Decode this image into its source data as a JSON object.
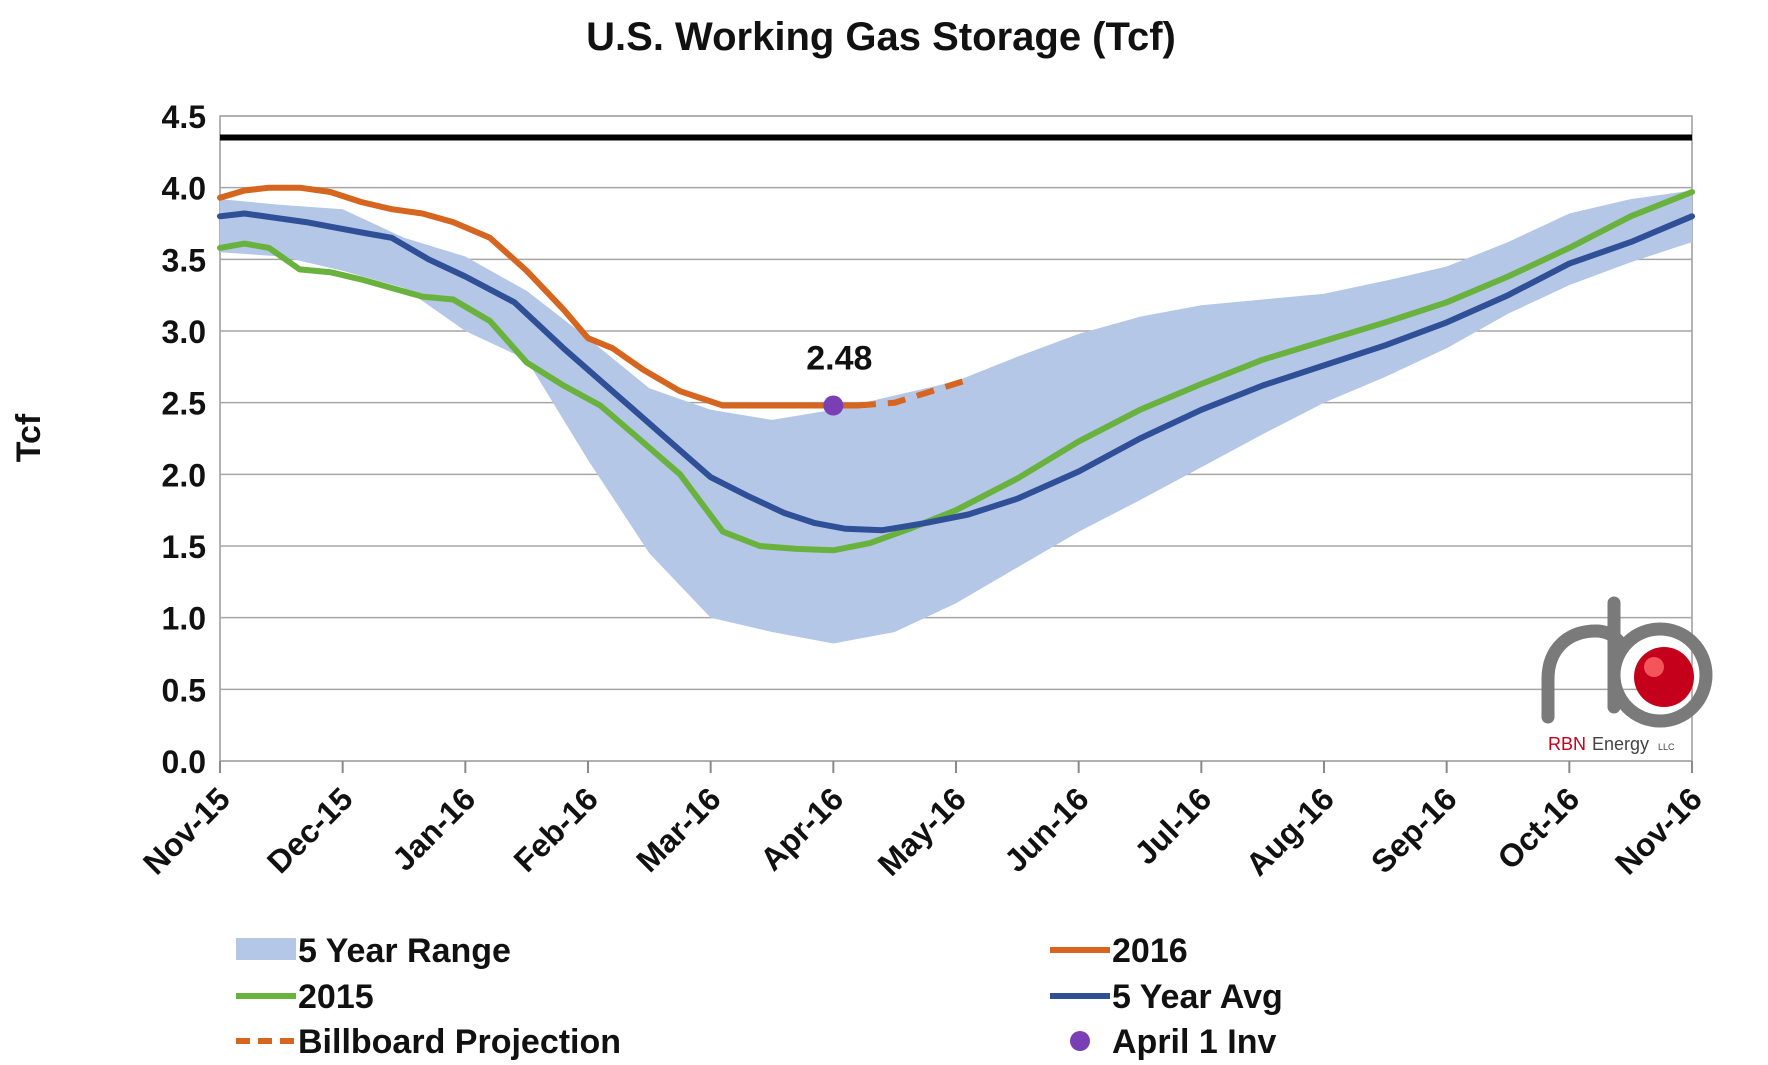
{
  "chart_data": {
    "type": "line",
    "title": "U.S. Working Gas Storage (Tcf)",
    "ylabel": "Tcf",
    "xlabel": "",
    "ylim": [
      0,
      4.5
    ],
    "yticks": [
      "0.0",
      "0.5",
      "1.0",
      "1.5",
      "2.0",
      "2.5",
      "3.0",
      "3.5",
      "4.0",
      "4.5"
    ],
    "xticks": [
      "Nov-15",
      "Dec-15",
      "Jan-16",
      "Feb-16",
      "Mar-16",
      "Apr-16",
      "May-16",
      "Jun-16",
      "Jul-16",
      "Aug-16",
      "Sep-16",
      "Oct-16",
      "Nov-16"
    ],
    "x_unit": "months since Nov-15",
    "capacity_line": {
      "value": 4.35,
      "color": "#000000"
    },
    "series": [
      {
        "name": "5 Year Range",
        "kind": "range",
        "color": "#b4c7e7",
        "x": [
          0,
          0.5,
          1,
          1.5,
          2,
          2.5,
          3,
          3.5,
          4,
          4.5,
          5,
          5.5,
          6,
          6.5,
          7,
          7.5,
          8,
          8.5,
          9,
          9.5,
          10,
          10.5,
          11,
          11.5,
          12
        ],
        "high": [
          3.92,
          3.88,
          3.85,
          3.65,
          3.52,
          3.28,
          2.95,
          2.6,
          2.45,
          2.38,
          2.45,
          2.55,
          2.65,
          2.82,
          2.98,
          3.1,
          3.18,
          3.22,
          3.26,
          3.35,
          3.45,
          3.62,
          3.82,
          3.92,
          3.98
        ],
        "low": [
          3.55,
          3.52,
          3.42,
          3.3,
          3.0,
          2.8,
          2.1,
          1.45,
          1.0,
          0.9,
          0.82,
          0.9,
          1.1,
          1.35,
          1.6,
          1.82,
          2.05,
          2.28,
          2.5,
          2.68,
          2.88,
          3.12,
          3.32,
          3.48,
          3.62
        ]
      },
      {
        "name": "2016",
        "color": "#d6651f",
        "x": [
          0,
          0.2,
          0.4,
          0.65,
          0.9,
          1.15,
          1.4,
          1.65,
          1.9,
          2.2,
          2.5,
          2.8,
          3.0,
          3.2,
          3.45,
          3.75,
          4.1,
          4.4,
          4.7,
          5.0,
          5.2
        ],
        "values": [
          3.93,
          3.98,
          4.0,
          4.0,
          3.97,
          3.9,
          3.85,
          3.82,
          3.76,
          3.65,
          3.42,
          3.15,
          2.95,
          2.88,
          2.73,
          2.58,
          2.48,
          2.48,
          2.48,
          2.48,
          2.48
        ]
      },
      {
        "name": "2015",
        "color": "#6ab23e",
        "x": [
          0,
          0.2,
          0.4,
          0.65,
          0.9,
          1.15,
          1.4,
          1.65,
          1.9,
          2.2,
          2.5,
          2.8,
          3.1,
          3.4,
          3.75,
          4.1,
          4.4,
          4.7,
          5.0,
          5.3,
          5.65,
          6.0,
          6.5,
          7.0,
          7.5,
          8.0,
          8.5,
          9.0,
          9.5,
          10.0,
          10.5,
          11.0,
          11.5,
          12.0
        ],
        "values": [
          3.58,
          3.61,
          3.58,
          3.43,
          3.41,
          3.36,
          3.3,
          3.24,
          3.22,
          3.07,
          2.78,
          2.62,
          2.48,
          2.26,
          2.0,
          1.6,
          1.5,
          1.48,
          1.47,
          1.52,
          1.63,
          1.75,
          1.97,
          2.23,
          2.45,
          2.63,
          2.8,
          2.93,
          3.06,
          3.2,
          3.38,
          3.58,
          3.8,
          3.97
        ]
      },
      {
        "name": "5 Year Avg",
        "color": "#2f4f97",
        "x": [
          0,
          0.2,
          0.45,
          0.7,
          0.95,
          1.2,
          1.4,
          1.7,
          2.0,
          2.4,
          2.8,
          3.2,
          3.6,
          4.0,
          4.3,
          4.6,
          4.85,
          5.1,
          5.4,
          5.75,
          6.1,
          6.5,
          7.0,
          7.5,
          8.0,
          8.5,
          9.0,
          9.5,
          10.0,
          10.5,
          11.0,
          11.5,
          12.0
        ],
        "values": [
          3.8,
          3.82,
          3.79,
          3.76,
          3.72,
          3.68,
          3.65,
          3.5,
          3.38,
          3.2,
          2.88,
          2.58,
          2.28,
          1.98,
          1.85,
          1.73,
          1.66,
          1.62,
          1.61,
          1.66,
          1.72,
          1.83,
          2.02,
          2.25,
          2.45,
          2.62,
          2.76,
          2.9,
          3.06,
          3.25,
          3.47,
          3.62,
          3.8
        ]
      },
      {
        "name": "Billboard Projection",
        "color": "#d6651f",
        "dashed": true,
        "x": [
          5.2,
          5.5,
          5.8,
          6.1
        ],
        "values": [
          2.48,
          2.5,
          2.58,
          2.66
        ]
      }
    ],
    "annotations": [
      {
        "name": "April 1 Inv",
        "x": 5.0,
        "y": 2.48,
        "label": "2.48",
        "color": "#7b3fb5"
      }
    ],
    "legend": {
      "placement": "bottom",
      "items": [
        {
          "name": "5 Year Range",
          "style": "band",
          "color": "#b4c7e7"
        },
        {
          "name": "2016",
          "style": "line",
          "color": "#d6651f"
        },
        {
          "name": "2015",
          "style": "line",
          "color": "#6ab23e"
        },
        {
          "name": "5 Year Avg",
          "style": "line",
          "color": "#2f4f97"
        },
        {
          "name": "Billboard Projection",
          "style": "dashed",
          "color": "#d6651f"
        },
        {
          "name": "April 1 Inv",
          "style": "dot",
          "color": "#7b3fb5"
        }
      ]
    },
    "grid": true
  },
  "logo": {
    "text_red": "RBN",
    "text_dark": "Energy",
    "suffix": "LLC"
  }
}
